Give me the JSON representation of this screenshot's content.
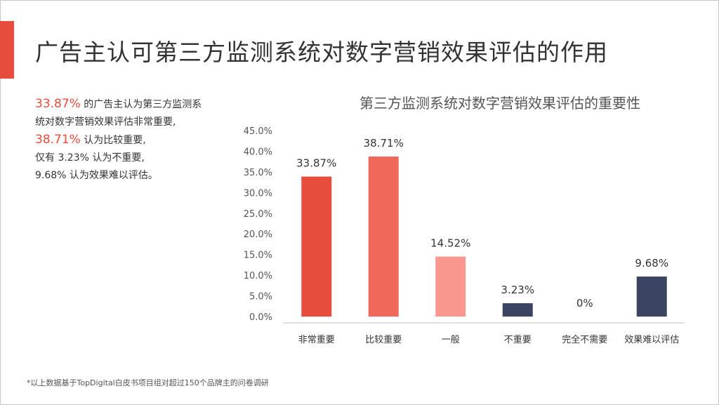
{
  "page": {
    "title": "广告主认可第三方监测系统对数字营销效果评估的作用",
    "footnote": "*以上数据基于TopDigital白皮书项目组对超过150个品牌主的问卷调研"
  },
  "summary": {
    "line1_value": "33.87%",
    "line1_text": " 的广告主认为第三方监测系",
    "line2_text": "统对数字营销效果评估非常重要,",
    "line3_value": "38.71%",
    "line3_text": " 认为比较重要,",
    "line4_text": "仅有 3.23% 认为不重要,",
    "line5_text": "9.68% 认为效果难以评估。"
  },
  "colors": {
    "accent": "#e84c3d",
    "text": "#333333"
  },
  "chart_data": {
    "type": "bar",
    "title": "第三方监测系统对数字营销效果评估的重要性",
    "categories": [
      "非常重要",
      "比较重要",
      "一般",
      "不重要",
      "完全不需要",
      "效果难以评估"
    ],
    "values": [
      33.87,
      38.71,
      14.52,
      3.23,
      0,
      9.68
    ],
    "data_labels": [
      "33.87%",
      "38.71%",
      "14.52%",
      "3.23%",
      "0%",
      "9.68%"
    ],
    "bar_colors": [
      "#e84c3d",
      "#f0685a",
      "#f99690",
      "#3b4461",
      "#3b4461",
      "#3b4461"
    ],
    "ylim": [
      0,
      45
    ],
    "yticks": [
      "0.0%",
      "5.0%",
      "10.0%",
      "15.0%",
      "20.0%",
      "25.0%",
      "30.0%",
      "35.0%",
      "40.0%",
      "45.0%"
    ],
    "grid": false,
    "legend": "none"
  }
}
